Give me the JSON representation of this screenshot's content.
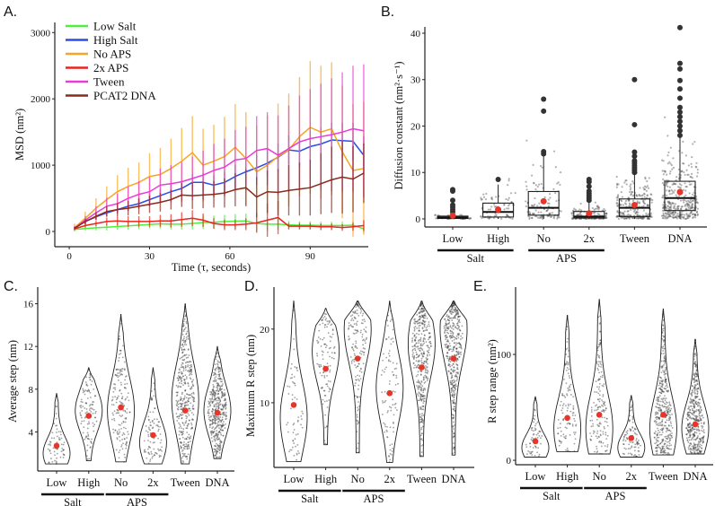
{
  "chart_data": [
    {
      "panel": "A.",
      "type": "line",
      "xlabel": "Time (τ, seconds)",
      "ylabel": "MSD (nm²)",
      "xticks": [
        0,
        30,
        60,
        90
      ],
      "yticks": [
        0,
        1000,
        2000,
        3000
      ],
      "xlim": [
        -5.4,
        111.7
      ],
      "ylim": [
        -230,
        3153
      ],
      "legend_position": "top-left",
      "x": [
        2,
        6,
        10,
        14,
        18,
        22,
        26,
        30,
        34,
        38,
        42,
        46,
        50,
        54,
        58,
        62,
        66,
        70,
        74,
        78,
        82,
        86,
        90,
        94,
        98,
        102,
        106,
        110
      ],
      "series": [
        {
          "name": "Low Salt",
          "color": "#4ef03a",
          "values": [
            30,
            45,
            55,
            65,
            75,
            85,
            95,
            105,
            115,
            110,
            110,
            120,
            135,
            140,
            150,
            155,
            160,
            120,
            110,
            110,
            100,
            95,
            95,
            90,
            90,
            90,
            95,
            40
          ],
          "error": [
            20,
            30,
            40,
            50,
            50,
            60,
            60,
            60,
            70,
            80,
            80,
            90,
            100,
            100,
            100,
            110,
            110,
            120,
            100,
            80,
            60,
            60,
            60,
            60,
            60,
            60,
            60,
            60
          ]
        },
        {
          "name": "High Salt",
          "color": "#2a4ee8",
          "values": [
            50,
            150,
            220,
            280,
            330,
            380,
            420,
            480,
            540,
            600,
            650,
            740,
            740,
            700,
            740,
            830,
            900,
            960,
            1030,
            1120,
            1230,
            1210,
            1280,
            1320,
            1380,
            1370,
            1360,
            1150
          ],
          "error": [
            20,
            30,
            40,
            50,
            60,
            70,
            80,
            90,
            100,
            110,
            120,
            130,
            140,
            150,
            160,
            170,
            180,
            190,
            200,
            210,
            220,
            230,
            240,
            250,
            260,
            270,
            280,
            290
          ]
        },
        {
          "name": "No APS",
          "color": "#f5a623",
          "values": [
            60,
            200,
            350,
            480,
            600,
            680,
            740,
            830,
            860,
            950,
            1060,
            1190,
            1000,
            1060,
            1130,
            1270,
            1100,
            900,
            1000,
            1130,
            1230,
            1430,
            1570,
            1500,
            1550,
            1200,
            920,
            950
          ],
          "error": [
            60,
            100,
            150,
            200,
            250,
            280,
            300,
            350,
            400,
            450,
            500,
            550,
            550,
            550,
            600,
            650,
            700,
            700,
            750,
            800,
            850,
            900,
            1000,
            1000,
            1000,
            1000,
            1000,
            1000
          ]
        },
        {
          "name": "2x APS",
          "color": "#e8251f",
          "values": [
            40,
            90,
            120,
            150,
            160,
            150,
            150,
            150,
            160,
            160,
            180,
            200,
            170,
            120,
            100,
            100,
            110,
            130,
            170,
            210,
            80,
            80,
            80,
            70,
            70,
            60,
            70,
            90
          ],
          "error": [
            20,
            30,
            40,
            60,
            70,
            80,
            80,
            80,
            90,
            100,
            110,
            120,
            100,
            80,
            80,
            80,
            90,
            150,
            250,
            250,
            50,
            50,
            50,
            50,
            50,
            50,
            60,
            80
          ]
        },
        {
          "name": "Tween",
          "color": "#e83ad8",
          "values": [
            50,
            170,
            280,
            380,
            420,
            500,
            560,
            600,
            700,
            720,
            750,
            800,
            850,
            920,
            970,
            1080,
            1100,
            1220,
            1250,
            1150,
            1250,
            1350,
            1400,
            1430,
            1460,
            1500,
            1550,
            1520
          ],
          "error": [
            30,
            60,
            100,
            130,
            150,
            180,
            200,
            220,
            250,
            280,
            300,
            330,
            370,
            400,
            430,
            450,
            480,
            520,
            550,
            600,
            650,
            700,
            750,
            800,
            850,
            900,
            950,
            1000
          ]
        },
        {
          "name": "PCAT2 DNA",
          "color": "#8b2a1a",
          "values": [
            50,
            150,
            230,
            300,
            330,
            350,
            380,
            410,
            440,
            480,
            550,
            540,
            550,
            560,
            580,
            630,
            660,
            520,
            600,
            590,
            620,
            640,
            660,
            720,
            780,
            820,
            790,
            880
          ],
          "error": [
            20,
            40,
            60,
            80,
            100,
            110,
            120,
            130,
            140,
            150,
            180,
            200,
            200,
            200,
            220,
            250,
            280,
            300,
            320,
            350,
            380,
            400,
            420,
            460,
            500,
            550,
            500,
            450
          ]
        }
      ]
    },
    {
      "panel": "B.",
      "type": "box",
      "ylabel": "Diffusion constant (nm²·s⁻¹)",
      "yticks": [
        0,
        10,
        20,
        30,
        40
      ],
      "ylim": [
        -1.74,
        41.35
      ],
      "categories": [
        "Low",
        "High",
        "No",
        "2x",
        "Tween",
        "DNA"
      ],
      "groups": [
        {
          "label": "Salt",
          "members": [
            0,
            1
          ]
        },
        {
          "label": "APS",
          "members": [
            2,
            3
          ]
        }
      ],
      "mean_color": "#e8352a",
      "boxes": [
        {
          "q1": 0.1,
          "median": 0.3,
          "q3": 0.6,
          "lo": 0,
          "hi": 1.3,
          "mean": 0.7,
          "outliers": [
            1.5,
            2,
            2.5,
            3,
            4,
            6,
            6.3
          ]
        },
        {
          "q1": 0.4,
          "median": 1.5,
          "q3": 3.4,
          "lo": 0,
          "hi": 7.4,
          "mean": 2.0,
          "outliers": [
            8.5
          ]
        },
        {
          "q1": 0.8,
          "median": 2.4,
          "q3": 5.9,
          "lo": 0,
          "hi": 13.5,
          "mean": 3.8,
          "outliers": [
            14,
            14.5,
            23.2,
            25.8
          ]
        },
        {
          "q1": 0.2,
          "median": 0.5,
          "q3": 1.6,
          "lo": 0,
          "hi": 3.5,
          "mean": 1.2,
          "outliers": [
            4,
            4.5,
            5,
            5.5,
            6,
            7,
            8,
            8.5
          ]
        },
        {
          "q1": 0.5,
          "median": 2.4,
          "q3": 4.3,
          "lo": 0,
          "hi": 9.8,
          "mean": 3.0,
          "outliers": [
            10,
            10.5,
            11,
            11.5,
            12,
            12.5,
            13.5,
            14.4,
            20.3,
            30
          ]
        },
        {
          "q1": 1.8,
          "median": 4.5,
          "q3": 8.1,
          "lo": 0,
          "hi": 17.5,
          "mean": 5.8,
          "outliers": [
            18,
            19,
            20,
            21,
            22,
            23,
            24,
            26,
            28,
            29.8,
            32.3,
            33.5,
            41.2
          ]
        }
      ]
    },
    {
      "panel": "C.",
      "type": "violin",
      "ylabel": "Average step (nm)",
      "yticks": [
        4,
        8,
        12,
        16
      ],
      "ylim": [
        0.34,
        17.56
      ],
      "categories": [
        "Low",
        "High",
        "No",
        "2x",
        "Tween",
        "DNA"
      ],
      "groups": [
        {
          "label": "Salt",
          "members": [
            0,
            1
          ]
        },
        {
          "label": "APS",
          "members": [
            2,
            3
          ]
        }
      ],
      "mean_color": "#e8352a",
      "violins": [
        {
          "min": 1.0,
          "max": 7.6,
          "mode": 2.0,
          "mean": 2.7
        },
        {
          "min": 1.3,
          "max": 10.0,
          "mode": 6.0,
          "mean": 5.5
        },
        {
          "min": 1.2,
          "max": 15.0,
          "mode": 6.0,
          "mean": 6.3
        },
        {
          "min": 1.0,
          "max": 10.0,
          "mode": 3.0,
          "mean": 3.7
        },
        {
          "min": 1.0,
          "max": 16.0,
          "mode": 7.0,
          "mean": 6.0
        },
        {
          "min": 1.5,
          "max": 12.0,
          "mode": 6.0,
          "mean": 5.8
        }
      ]
    },
    {
      "panel": "D.",
      "type": "violin",
      "ylabel": "Maximum R step (nm)",
      "yticks": [
        10,
        20
      ],
      "ylim": [
        1.22,
        25.7
      ],
      "categories": [
        "Low",
        "High",
        "No",
        "2x",
        "Tween",
        "DNA"
      ],
      "groups": [
        {
          "label": "Salt",
          "members": [
            0,
            1
          ]
        },
        {
          "label": "APS",
          "members": [
            2,
            3
          ]
        }
      ],
      "mean_color": "#e8352a",
      "violins": [
        {
          "min": 2.0,
          "max": 23.8,
          "mode": 8.0,
          "mean": 9.7
        },
        {
          "min": 4.3,
          "max": 22.8,
          "mode": 17.0,
          "mean": 14.6
        },
        {
          "min": 3.2,
          "max": 23.8,
          "mode": 20.0,
          "mean": 16.0
        },
        {
          "min": 1.9,
          "max": 23.8,
          "mode": 12.0,
          "mean": 11.3
        },
        {
          "min": 2.7,
          "max": 23.8,
          "mode": 18.0,
          "mean": 14.8
        },
        {
          "min": 2.9,
          "max": 23.8,
          "mode": 20.0,
          "mean": 16.0
        }
      ]
    },
    {
      "panel": "E.",
      "type": "violin",
      "ylabel": "R step range (nm²)",
      "yticks": [
        0,
        100
      ],
      "ylim": [
        -4.2,
        163.6
      ],
      "categories": [
        "Low",
        "High",
        "No",
        "2x",
        "Tween",
        "DNA"
      ],
      "groups": [
        {
          "label": "Salt",
          "members": [
            0,
            1
          ]
        },
        {
          "label": "APS",
          "members": [
            2,
            3
          ]
        }
      ],
      "mean_color": "#e8352a",
      "violins": [
        {
          "min": 3,
          "max": 60,
          "mode": 12,
          "mean": 18
        },
        {
          "min": 8,
          "max": 137,
          "mode": 30,
          "mean": 40
        },
        {
          "min": 6,
          "max": 152,
          "mode": 30,
          "mean": 43
        },
        {
          "min": 3,
          "max": 61,
          "mode": 12,
          "mean": 21
        },
        {
          "min": 5,
          "max": 143,
          "mode": 30,
          "mean": 43
        },
        {
          "min": 6,
          "max": 114,
          "mode": 30,
          "mean": 34
        }
      ]
    }
  ]
}
